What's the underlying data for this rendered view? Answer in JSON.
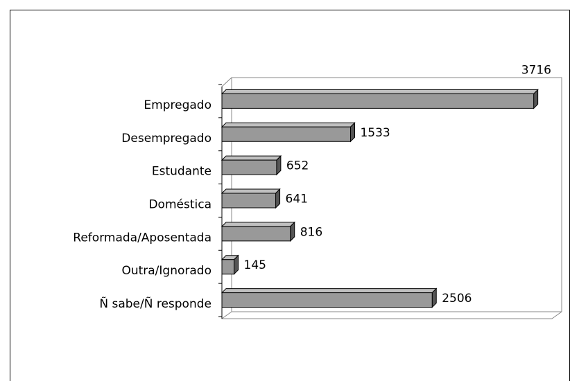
{
  "chart_data": {
    "type": "bar",
    "orientation": "horizontal",
    "categories": [
      "Empregado",
      "Desempregado",
      "Estudante",
      "Doméstica",
      "Reformada/Aposentada",
      "Outra/Ignorado",
      "Ñ sabe/Ñ responde"
    ],
    "values": [
      3716,
      1533,
      652,
      641,
      816,
      145,
      2506
    ],
    "color": "#999999",
    "xlim": [
      0,
      4000
    ]
  }
}
